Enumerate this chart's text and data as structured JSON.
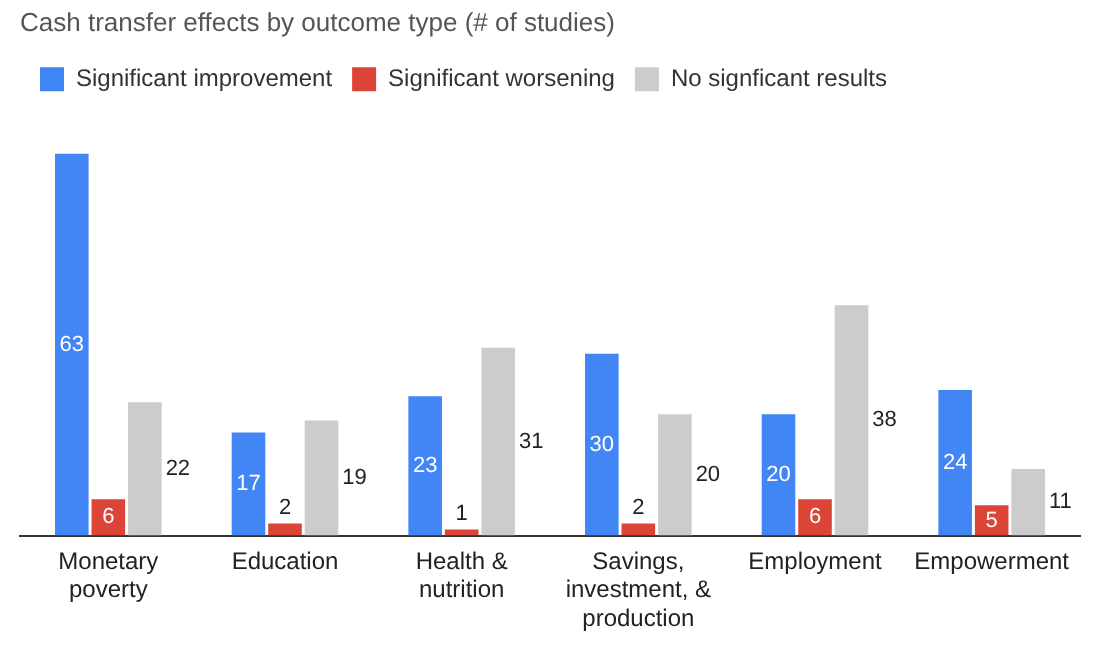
{
  "chart_data": {
    "type": "bar",
    "title": "Cash transfer effects by outcome type (# of studies)",
    "categories": [
      "Monetary poverty",
      "Education",
      "Health & nutrition",
      "Savings, investment, & production",
      "Employment",
      "Empowerment"
    ],
    "series": [
      {
        "name": "Significant improvement",
        "color": "#4285f4",
        "values": [
          63,
          17,
          23,
          30,
          20,
          24
        ]
      },
      {
        "name": "Significant worsening",
        "color": "#db4437",
        "values": [
          6,
          2,
          1,
          2,
          6,
          5
        ]
      },
      {
        "name": "No signficant results",
        "color": "#cccccc",
        "values": [
          22,
          19,
          31,
          20,
          38,
          11
        ]
      }
    ],
    "data_labels": true,
    "legend": "top left",
    "grid": false
  }
}
